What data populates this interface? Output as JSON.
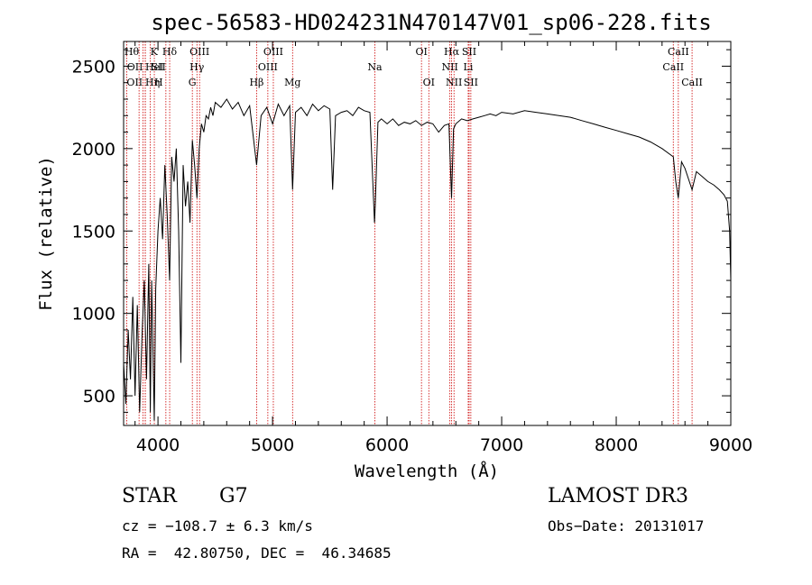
{
  "chart_data": {
    "type": "line",
    "title": "spec-56583-HD024231N470147V01_sp06-228.fits",
    "xlabel": "Wavelength (Å)",
    "ylabel": "Flux (relative)",
    "xlim": [
      3700,
      9000
    ],
    "ylim": [
      320,
      2650
    ],
    "x_ticks": [
      4000,
      5000,
      6000,
      7000,
      8000,
      9000
    ],
    "y_ticks": [
      500,
      1000,
      1500,
      2000,
      2500
    ],
    "grid": false,
    "legend": "none",
    "series": [
      {
        "x": [
          3700,
          3720,
          3740,
          3760,
          3780,
          3800,
          3820,
          3840,
          3860,
          3880,
          3900,
          3920,
          3933,
          3945,
          3968,
          3980,
          4000,
          4020,
          4040,
          4060,
          4080,
          4102,
          4120,
          4140,
          4160,
          4180,
          4200,
          4220,
          4240,
          4260,
          4280,
          4300,
          4320,
          4340,
          4360,
          4380,
          4400,
          4420,
          4440,
          4460,
          4480,
          4500,
          4550,
          4600,
          4650,
          4700,
          4750,
          4800,
          4861,
          4900,
          4950,
          5000,
          5050,
          5100,
          5150,
          5175,
          5200,
          5250,
          5300,
          5350,
          5400,
          5450,
          5500,
          5525,
          5550,
          5600,
          5650,
          5700,
          5750,
          5800,
          5850,
          5890,
          5896,
          5920,
          5950,
          6000,
          6050,
          6100,
          6150,
          6200,
          6250,
          6300,
          6350,
          6400,
          6450,
          6500,
          6540,
          6563,
          6580,
          6600,
          6650,
          6700,
          6750,
          6800,
          6850,
          6900,
          6950,
          7000,
          7100,
          7200,
          7300,
          7400,
          7500,
          7600,
          7700,
          7800,
          7900,
          8000,
          8100,
          8200,
          8300,
          8400,
          8498,
          8520,
          8542,
          8570,
          8600,
          8662,
          8700,
          8750,
          8800,
          8850,
          8900,
          8940,
          8970,
          8990,
          9000
        ],
        "values": [
          700,
          450,
          900,
          600,
          1100,
          500,
          1050,
          400,
          850,
          1200,
          600,
          1300,
          400,
          1200,
          350,
          1150,
          1500,
          1700,
          1450,
          1900,
          1600,
          1200,
          1950,
          1800,
          2000,
          1500,
          700,
          1900,
          1650,
          1800,
          1550,
          2050,
          1900,
          1700,
          2000,
          2150,
          2100,
          2200,
          2180,
          2250,
          2200,
          2280,
          2250,
          2300,
          2240,
          2280,
          2200,
          2260,
          1900,
          2200,
          2250,
          2150,
          2270,
          2200,
          2260,
          1750,
          2220,
          2250,
          2200,
          2270,
          2230,
          2260,
          2240,
          1750,
          2200,
          2220,
          2230,
          2200,
          2250,
          2230,
          2220,
          1550,
          1650,
          2160,
          2180,
          2150,
          2180,
          2140,
          2160,
          2150,
          2170,
          2140,
          2160,
          2150,
          2100,
          2140,
          2150,
          1700,
          2120,
          2150,
          2180,
          2170,
          2180,
          2190,
          2200,
          2210,
          2200,
          2220,
          2210,
          2230,
          2220,
          2210,
          2200,
          2190,
          2170,
          2150,
          2130,
          2110,
          2090,
          2070,
          2040,
          2000,
          1950,
          1800,
          1700,
          1920,
          1880,
          1750,
          1860,
          1830,
          1800,
          1780,
          1750,
          1720,
          1680,
          1500,
          1200
        ]
      }
    ],
    "lines": [
      {
        "x": 3835,
        "label": "Hθ",
        "row": 0,
        "anchor": "end"
      },
      {
        "x": 3869,
        "label": "OII",
        "row": 1,
        "anchor": "end"
      },
      {
        "x": 3889,
        "label": "HeI",
        "row": 1,
        "anchor": "start"
      },
      {
        "x": 3727,
        "label": "OII",
        "row": 2,
        "anchor": "start"
      },
      {
        "x": 3889,
        "label": "Hη",
        "row": 2,
        "anchor": "start"
      },
      {
        "x": 3933,
        "label": "K",
        "row": 0,
        "anchor": "start"
      },
      {
        "x": 3968,
        "label": "H",
        "row": 2,
        "anchor": "start"
      },
      {
        "x": 4069,
        "label": "SII",
        "row": 1,
        "anchor": "end"
      },
      {
        "x": 4102,
        "label": "Hδ",
        "row": 0,
        "anchor": "middle"
      },
      {
        "x": 4300,
        "label": "G",
        "row": 2,
        "anchor": "middle"
      },
      {
        "x": 4340,
        "label": "Hγ",
        "row": 1,
        "anchor": "middle"
      },
      {
        "x": 4363,
        "label": "OIII",
        "row": 0,
        "anchor": "middle"
      },
      {
        "x": 4861,
        "label": "Hβ",
        "row": 2,
        "anchor": "middle"
      },
      {
        "x": 4959,
        "label": "OIII",
        "row": 1,
        "anchor": "middle"
      },
      {
        "x": 5007,
        "label": "OIII",
        "row": 0,
        "anchor": "middle"
      },
      {
        "x": 5175,
        "label": "Mg",
        "row": 2,
        "anchor": "middle"
      },
      {
        "x": 5893,
        "label": "Na",
        "row": 1,
        "anchor": "middle"
      },
      {
        "x": 6300,
        "label": "OI",
        "row": 0,
        "anchor": "middle"
      },
      {
        "x": 6364,
        "label": "OI",
        "row": 2,
        "anchor": "middle"
      },
      {
        "x": 6548,
        "label": "NII",
        "row": 1,
        "anchor": "middle"
      },
      {
        "x": 6563,
        "label": "Hα",
        "row": 0,
        "anchor": "middle"
      },
      {
        "x": 6584,
        "label": "NII",
        "row": 2,
        "anchor": "middle"
      },
      {
        "x": 6708,
        "label": "Li",
        "row": 1,
        "anchor": "middle"
      },
      {
        "x": 6716,
        "label": "SII",
        "row": 0,
        "anchor": "middle"
      },
      {
        "x": 6731,
        "label": "SII",
        "row": 2,
        "anchor": "middle"
      },
      {
        "x": 8498,
        "label": "CaII",
        "row": 1,
        "anchor": "middle"
      },
      {
        "x": 8542,
        "label": "CaII",
        "row": 0,
        "anchor": "middle"
      },
      {
        "x": 8662,
        "label": "CaII",
        "row": 2,
        "anchor": "middle"
      }
    ],
    "colors": {
      "spectrum": "#000000",
      "line_markers": "#cc0000",
      "axes": "#000000"
    }
  },
  "info": {
    "object_class": "STAR",
    "subclass": "G7",
    "survey": "LAMOST DR3",
    "velocity": "cz = −108.7 ± 6.3 km/s",
    "obs_date": "Obs−Date: 20131017",
    "coords": "RA =  42.80750, DEC =  46.34685"
  }
}
